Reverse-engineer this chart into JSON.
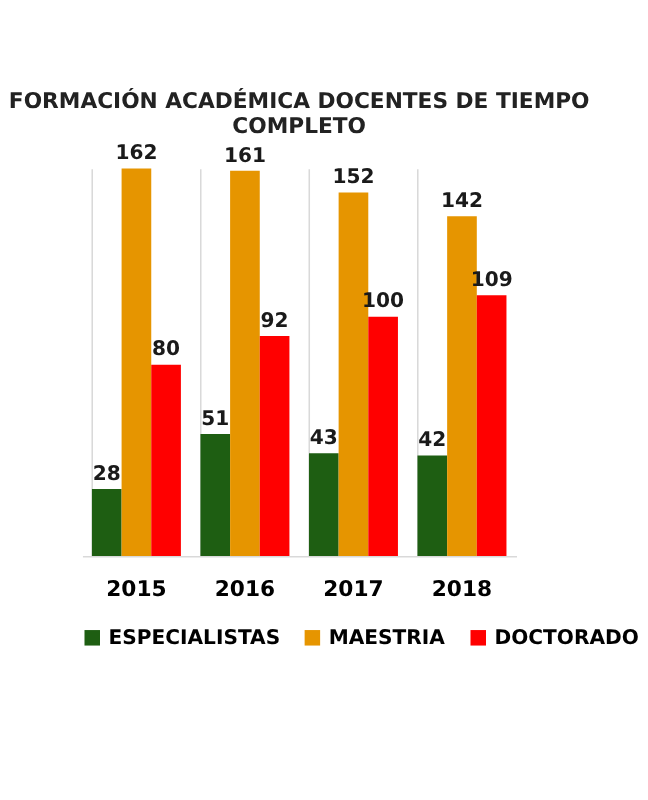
{
  "chart_data": {
    "type": "bar",
    "title": [
      "FORMACIÓN ACADÉMICA DOCENTES DE TIEMPO",
      "COMPLETO"
    ],
    "categories": [
      "2015",
      "2016",
      "2017",
      "2018"
    ],
    "series": [
      {
        "name": "ESPECIALISTAS",
        "color": "#1e5e12",
        "values": [
          28,
          51,
          43,
          42
        ]
      },
      {
        "name": "MAESTRIA",
        "color": "#e69500",
        "values": [
          162,
          161,
          152,
          142
        ]
      },
      {
        "name": "DOCTORADO",
        "color": "#ff0000",
        "values": [
          80,
          92,
          100,
          109
        ]
      }
    ],
    "data_labels": true,
    "grid": "x",
    "legend": "bottom"
  }
}
